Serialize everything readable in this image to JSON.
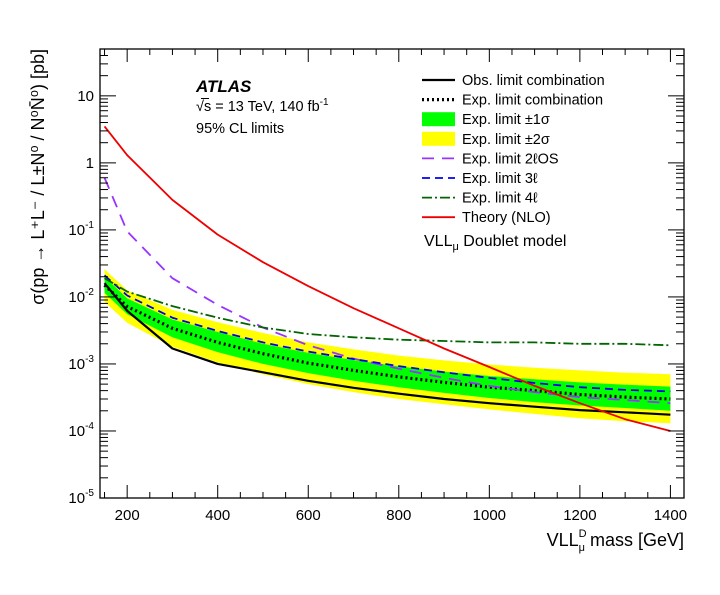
{
  "chart_data": {
    "type": "line",
    "title": "",
    "experiment": "ATLAS",
    "energy_line": "√s = 13 TeV, 140 fb",
    "energy_sup": "-1",
    "cl_line": "95% CL limits",
    "model_label": "VLL",
    "model_sub": "μ",
    "model_rest": " Doublet model",
    "xlabel": "VLL",
    "xlabel_sup": "D",
    "xlabel_sub": "μ",
    "xlabel_rest": " mass [GeV]",
    "ylabel": "σ(pp → L⁺L⁻ / L±N⁰ / N⁰N̄⁰)  [pb]",
    "xlim": [
      140,
      1430
    ],
    "ylim": [
      1e-05,
      50
    ],
    "yscale": "log",
    "x_ticks": [
      200,
      400,
      600,
      800,
      1000,
      1200,
      1400
    ],
    "x_tick_labels": [
      "200",
      "400",
      "600",
      "800",
      "1000",
      "1200",
      "1400"
    ],
    "y_ticks": [
      1e-05,
      0.0001,
      0.001,
      0.01,
      0.1,
      1,
      10
    ],
    "y_tick_base": "10",
    "y_tick_exps": [
      "-5",
      "-4",
      "-3",
      "-2",
      "-1",
      "",
      ""
    ],
    "y_tick_plain": [
      "",
      "",
      "",
      "",
      "",
      "1",
      "10"
    ],
    "x": [
      150,
      200,
      300,
      400,
      500,
      600,
      700,
      800,
      900,
      1000,
      1100,
      1200,
      1300,
      1400
    ],
    "bands": [
      {
        "name": "Exp. limit ±2σ",
        "color": "#ffff00",
        "upper": [
          0.026,
          0.0125,
          0.0064,
          0.0042,
          0.0029,
          0.0021,
          0.00165,
          0.00133,
          0.00113,
          0.00098,
          0.00088,
          0.0008,
          0.00074,
          0.0007
        ],
        "lower": [
          0.0085,
          0.0041,
          0.0018,
          0.00105,
          0.0007,
          0.0005,
          0.00038,
          0.0003,
          0.00025,
          0.00021,
          0.00018,
          0.000155,
          0.00014,
          0.00013
        ]
      },
      {
        "name": "Exp. limit ±1σ",
        "color": "#00ff00",
        "upper": [
          0.02,
          0.0095,
          0.0046,
          0.003,
          0.002,
          0.00146,
          0.00114,
          0.00092,
          0.00077,
          0.00066,
          0.00059,
          0.00053,
          0.00049,
          0.00046
        ],
        "lower": [
          0.0115,
          0.0055,
          0.0025,
          0.0015,
          0.001,
          0.00073,
          0.00056,
          0.00045,
          0.00037,
          0.00031,
          0.00027,
          0.00024,
          0.00022,
          0.0002
        ]
      }
    ],
    "series": [
      {
        "name": "Obs. limit combination",
        "color": "#000000",
        "dash": "none",
        "width": 2.2,
        "values": [
          0.016,
          0.0062,
          0.0017,
          0.001,
          0.00075,
          0.00056,
          0.00044,
          0.00036,
          0.0003,
          0.00026,
          0.00023,
          0.000205,
          0.00019,
          0.000175
        ]
      },
      {
        "name": "Exp. limit combination",
        "color": "#000000",
        "dash": "2 3",
        "width": 3.2,
        "values": [
          0.015,
          0.0072,
          0.0034,
          0.0021,
          0.00142,
          0.00103,
          0.0008,
          0.00064,
          0.00053,
          0.00045,
          0.0004,
          0.00035,
          0.00032,
          0.0003
        ]
      },
      {
        "name": "Exp. limit 2ℓOS",
        "color": "#9933ff",
        "dash": "12 8",
        "width": 1.8,
        "values": [
          0.6,
          0.095,
          0.019,
          0.0076,
          0.0035,
          0.0019,
          0.0012,
          0.00085,
          0.00062,
          0.00047,
          0.00038,
          0.00032,
          0.00029,
          0.00026
        ]
      },
      {
        "name": "Exp. limit 3ℓ",
        "color": "#0000ee",
        "dash": "8 5",
        "width": 1.8,
        "values": [
          0.021,
          0.0105,
          0.0049,
          0.0031,
          0.0021,
          0.00153,
          0.00118,
          0.00093,
          0.00075,
          0.00062,
          0.00052,
          0.00045,
          0.00041,
          0.00039
        ]
      },
      {
        "name": "Exp. limit 4ℓ",
        "color": "#006600",
        "dash": "10 3 2 3",
        "width": 1.8,
        "values": [
          0.019,
          0.012,
          0.0073,
          0.0049,
          0.0035,
          0.0028,
          0.0025,
          0.0023,
          0.0022,
          0.0021,
          0.0021,
          0.002,
          0.002,
          0.0019
        ]
      },
      {
        "name": "Theory (NLO)",
        "color": "#ee0000",
        "dash": "none",
        "width": 1.8,
        "values": [
          3.5,
          1.3,
          0.28,
          0.085,
          0.033,
          0.0145,
          0.0068,
          0.0034,
          0.0017,
          0.0009,
          0.00047,
          0.00026,
          0.00015,
          0.0001
        ]
      }
    ],
    "legend": [
      {
        "label": "Obs. limit combination",
        "kind": "line",
        "color": "#000000",
        "dash": "none",
        "width": 2.2
      },
      {
        "label": "Exp. limit combination",
        "kind": "line",
        "color": "#000000",
        "dash": "2 3",
        "width": 3.2
      },
      {
        "label": "Exp. limit ±1σ",
        "kind": "box",
        "color": "#00ff00"
      },
      {
        "label": "Exp. limit ±2σ",
        "kind": "box",
        "color": "#ffff00"
      },
      {
        "label": "Exp. limit 2ℓOS",
        "kind": "line",
        "color": "#9933ff",
        "dash": "12 8",
        "width": 1.8
      },
      {
        "label": "Exp. limit 3ℓ",
        "kind": "line",
        "color": "#0000ee",
        "dash": "8 5",
        "width": 1.8
      },
      {
        "label": "Exp. limit 4ℓ",
        "kind": "line",
        "color": "#006600",
        "dash": "10 3 2 3",
        "width": 1.8
      },
      {
        "label": "Theory (NLO)",
        "kind": "line",
        "color": "#ee0000",
        "dash": "none",
        "width": 1.8
      }
    ],
    "legend_position": "top-right",
    "grid": false
  }
}
